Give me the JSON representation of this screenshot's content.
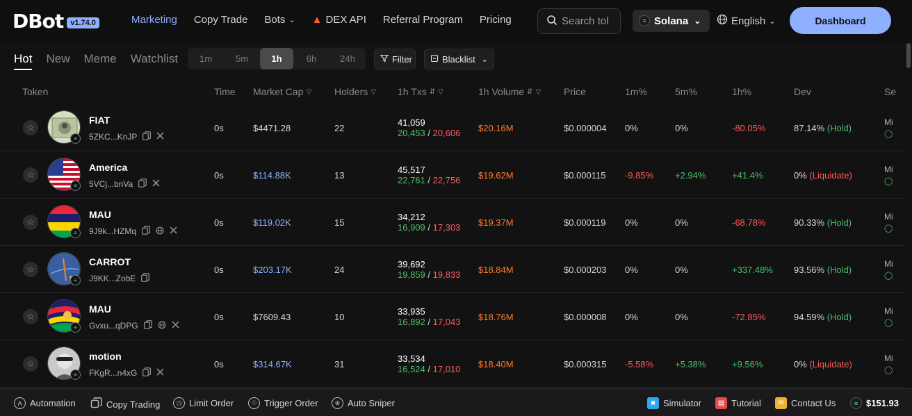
{
  "app": {
    "brand": "DBot",
    "version": "v1.74.0"
  },
  "nav": [
    {
      "label": "Marketing",
      "active": true
    },
    {
      "label": "Copy Trade"
    },
    {
      "label": "Bots",
      "dropdown": true
    },
    {
      "label": "DEX API",
      "icon": "fire-icon"
    },
    {
      "label": "Referral Program"
    },
    {
      "label": "Pricing"
    }
  ],
  "search": {
    "placeholder": "Search tol"
  },
  "chain": {
    "label": "Solana"
  },
  "language": {
    "label": "English"
  },
  "dashboard_button": "Dashboard",
  "tabs": [
    {
      "label": "Hot",
      "active": true
    },
    {
      "label": "New"
    },
    {
      "label": "Meme"
    },
    {
      "label": "Watchlist"
    }
  ],
  "timeframes": [
    {
      "label": "1m"
    },
    {
      "label": "5m"
    },
    {
      "label": "1h",
      "active": true
    },
    {
      "label": "6h"
    },
    {
      "label": "24h"
    }
  ],
  "filter_label": "Filter",
  "blacklist_label": "Blacklist",
  "columns": {
    "token": "Token",
    "time": "Time",
    "market_cap": "Market Cap",
    "holders": "Holders",
    "txs": "1h Txs",
    "volume": "1h Volume",
    "price": "Price",
    "m1": "1m%",
    "m5": "5m%",
    "h1": "1h%",
    "dev": "Dev",
    "sec": "Se"
  },
  "rows": [
    {
      "name": "FIAT",
      "addr": "5ZKC...KnJP",
      "socials": [
        "copy",
        "x"
      ],
      "time": "0s",
      "mcap": "$4471.28",
      "mcap_color": "#d6d6d6",
      "holders": "22",
      "txs_total": "41,059",
      "txs_buy": "20,453",
      "txs_sell": "20,606",
      "volume": "$20.16M",
      "price": "$0.000004",
      "m1": "0%",
      "m1_color": "#d6d6d6",
      "m5": "0%",
      "m5_color": "#d6d6d6",
      "h1": "-80.05%",
      "h1_color": "#ff5a5a",
      "dev_pct": "87.14%",
      "dev_status": "(Hold)",
      "dev_color": "#4fbf6b",
      "sec": "Mi",
      "avatar": "dollar"
    },
    {
      "name": "America",
      "addr": "5VCj...bnVa",
      "socials": [
        "copy",
        "x"
      ],
      "time": "0s",
      "mcap": "$114.88K",
      "mcap_color": "#8fb0ff",
      "holders": "13",
      "txs_total": "45,517",
      "txs_buy": "22,761",
      "txs_sell": "22,756",
      "volume": "$19.62M",
      "price": "$0.000115",
      "m1": "-9.85%",
      "m1_color": "#ff5a5a",
      "m5": "+2.94%",
      "m5_color": "#4fbf6b",
      "h1": "+41.4%",
      "h1_color": "#4fbf6b",
      "dev_pct": "0%",
      "dev_status": "(Liquidate)",
      "dev_color": "#ff5a5a",
      "sec": "Mi",
      "avatar": "usflag"
    },
    {
      "name": "MAU",
      "addr": "9J9k...HZMq",
      "socials": [
        "copy",
        "web",
        "x"
      ],
      "time": "0s",
      "mcap": "$119.02K",
      "mcap_color": "#8fb0ff",
      "holders": "15",
      "txs_total": "34,212",
      "txs_buy": "16,909",
      "txs_sell": "17,303",
      "volume": "$19.37M",
      "price": "$0.000119",
      "m1": "0%",
      "m1_color": "#d6d6d6",
      "m5": "0%",
      "m5_color": "#d6d6d6",
      "h1": "-68.78%",
      "h1_color": "#ff5a5a",
      "dev_pct": "90.33%",
      "dev_status": "(Hold)",
      "dev_color": "#4fbf6b",
      "sec": "Mi",
      "avatar": "mauflag"
    },
    {
      "name": "CARROT",
      "addr": "J9KK...ZobE",
      "socials": [
        "copy"
      ],
      "time": "0s",
      "mcap": "$203.17K",
      "mcap_color": "#8fb0ff",
      "holders": "24",
      "txs_total": "39,692",
      "txs_buy": "19,859",
      "txs_sell": "19,833",
      "volume": "$18.84M",
      "price": "$0.000203",
      "m1": "0%",
      "m1_color": "#d6d6d6",
      "m5": "0%",
      "m5_color": "#d6d6d6",
      "h1": "+337.48%",
      "h1_color": "#4fbf6b",
      "dev_pct": "93.56%",
      "dev_status": "(Hold)",
      "dev_color": "#4fbf6b",
      "sec": "Mi",
      "avatar": "carrot"
    },
    {
      "name": "MAU",
      "addr": "Gvxu...qDPG",
      "socials": [
        "copy",
        "web",
        "x"
      ],
      "time": "0s",
      "mcap": "$7609.43",
      "mcap_color": "#d6d6d6",
      "holders": "10",
      "txs_total": "33,935",
      "txs_buy": "16,892",
      "txs_sell": "17,043",
      "volume": "$18.76M",
      "price": "$0.000008",
      "m1": "0%",
      "m1_color": "#d6d6d6",
      "m5": "0%",
      "m5_color": "#d6d6d6",
      "h1": "-72.85%",
      "h1_color": "#ff5a5a",
      "dev_pct": "94.59%",
      "dev_status": "(Hold)",
      "dev_color": "#4fbf6b",
      "sec": "Mi",
      "avatar": "mauwave"
    },
    {
      "name": "motion",
      "addr": "FKgR...n4xG",
      "socials": [
        "copy",
        "x"
      ],
      "time": "0s",
      "mcap": "$314.67K",
      "mcap_color": "#8fb0ff",
      "holders": "31",
      "txs_total": "33,534",
      "txs_buy": "16,524",
      "txs_sell": "17,010",
      "volume": "$18.40M",
      "price": "$0.000315",
      "m1": "-5.58%",
      "m1_color": "#ff5a5a",
      "m5": "+5.38%",
      "m5_color": "#4fbf6b",
      "h1": "+9.56%",
      "h1_color": "#4fbf6b",
      "dev_pct": "0%",
      "dev_status": "(Liquidate)",
      "dev_color": "#ff5a5a",
      "sec": "Mi",
      "avatar": "person"
    }
  ],
  "bottom": {
    "automation": "Automation",
    "copy_trading": "Copy Trading",
    "limit_order": "Limit Order",
    "trigger_order": "Trigger Order",
    "auto_sniper": "Auto Sniper",
    "simulator": "Simulator",
    "tutorial": "Tutorial",
    "contact": "Contact Us",
    "balance": "$151.93"
  }
}
